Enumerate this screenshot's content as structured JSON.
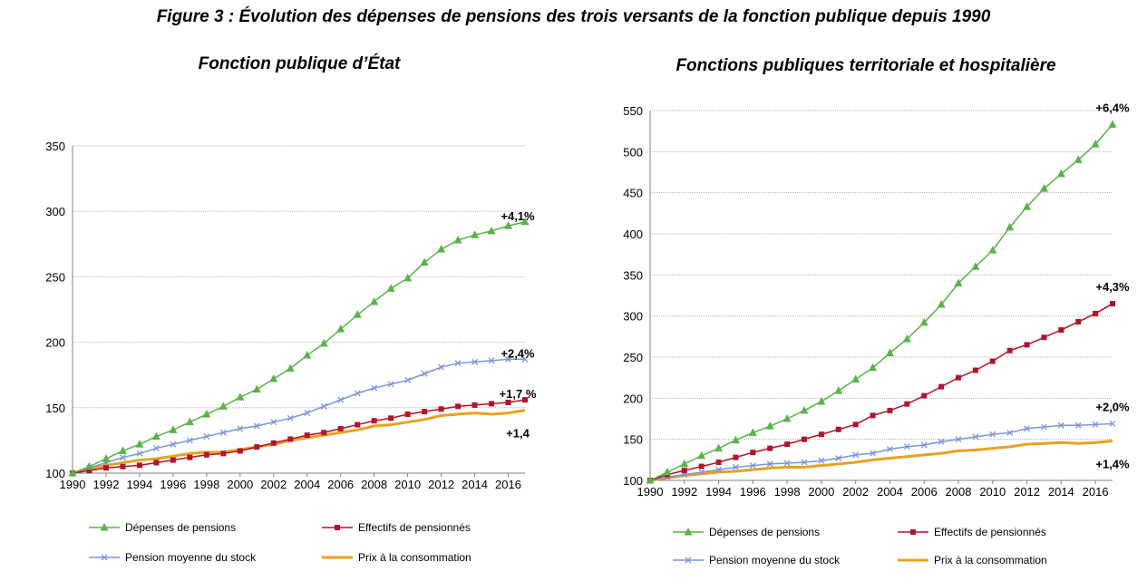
{
  "figure_title": "Figure 3 : Évolution des dépenses de pensions des trois versants de la fonction publique depuis 1990",
  "chart_data": [
    {
      "type": "line",
      "title": "Fonction publique d’État",
      "x": [
        1990,
        1991,
        1992,
        1993,
        1994,
        1995,
        1996,
        1997,
        1998,
        1999,
        2000,
        2001,
        2002,
        2003,
        2004,
        2005,
        2006,
        2007,
        2008,
        2009,
        2010,
        2011,
        2012,
        2013,
        2014,
        2015,
        2016,
        2017
      ],
      "x_tick_labels": [
        "1990",
        "1992",
        "1994",
        "1996",
        "1998",
        "2000",
        "2002",
        "2004",
        "2006",
        "2008",
        "2010",
        "2012",
        "2014",
        "2016"
      ],
      "ylim": [
        100,
        350
      ],
      "y_ticks": [
        100,
        150,
        200,
        250,
        300,
        350
      ],
      "grid": true,
      "legend_position": "bottom",
      "series": [
        {
          "name": "Dépenses de pensions",
          "color": "#59b348",
          "marker": "triangle",
          "values": [
            100,
            105,
            111,
            117,
            122,
            128,
            133,
            139,
            145,
            151,
            158,
            164,
            172,
            180,
            190,
            199,
            210,
            221,
            231,
            241,
            249,
            261,
            271,
            278,
            282,
            285,
            289,
            292
          ]
        },
        {
          "name": "Effectifs de pensionnés",
          "color": "#b5122a",
          "marker": "square",
          "values": [
            100,
            102,
            104,
            105,
            106,
            108,
            110,
            112,
            114,
            115,
            117,
            120,
            123,
            126,
            129,
            131,
            134,
            137,
            140,
            142,
            145,
            147,
            149,
            151,
            152,
            153,
            154,
            156
          ]
        },
        {
          "name": "Pension moyenne du stock",
          "color": "#7a96d8",
          "marker": "x",
          "values": [
            100,
            104,
            108,
            112,
            115,
            119,
            122,
            125,
            128,
            131,
            134,
            136,
            139,
            142,
            146,
            151,
            156,
            161,
            165,
            168,
            171,
            176,
            181,
            184,
            185,
            186,
            187,
            187
          ]
        },
        {
          "name": "Prix à la consommation",
          "color": "#e9a21f",
          "marker": "none",
          "values": [
            100,
            103,
            106,
            108,
            110,
            111,
            113,
            115,
            116,
            116,
            118,
            120,
            122,
            125,
            127,
            129,
            131,
            133,
            136,
            137,
            139,
            141,
            144,
            145,
            146,
            145,
            146,
            148
          ]
        }
      ],
      "annotations": [
        {
          "text": "+4,1%",
          "x": 2017,
          "y": 292
        },
        {
          "text": "+2,4%",
          "x": 2017,
          "y": 187
        },
        {
          "text": "+1,7 %",
          "x": 2017,
          "y": 156
        },
        {
          "text": "+1,4",
          "x": 2017,
          "y": 148
        }
      ]
    },
    {
      "type": "line",
      "title": "Fonctions publiques territoriale et hospitalière",
      "x": [
        1990,
        1991,
        1992,
        1993,
        1994,
        1995,
        1996,
        1997,
        1998,
        1999,
        2000,
        2001,
        2002,
        2003,
        2004,
        2005,
        2006,
        2007,
        2008,
        2009,
        2010,
        2011,
        2012,
        2013,
        2014,
        2015,
        2016,
        2017
      ],
      "x_tick_labels": [
        "1990",
        "1992",
        "1994",
        "1996",
        "1998",
        "2000",
        "2002",
        "2004",
        "2006",
        "2008",
        "2010",
        "2012",
        "2014",
        "2016"
      ],
      "ylim": [
        100,
        550
      ],
      "y_ticks": [
        100,
        150,
        200,
        250,
        300,
        350,
        400,
        450,
        500,
        550
      ],
      "grid": true,
      "legend_position": "bottom",
      "series": [
        {
          "name": "Dépenses de pensions",
          "color": "#59b348",
          "marker": "triangle",
          "values": [
            100,
            110,
            120,
            130,
            139,
            149,
            158,
            166,
            175,
            185,
            196,
            209,
            223,
            237,
            255,
            272,
            292,
            314,
            340,
            360,
            380,
            408,
            433,
            455,
            473,
            490,
            509,
            533
          ]
        },
        {
          "name": "Effectifs de pensionnés",
          "color": "#b5122a",
          "marker": "square",
          "values": [
            100,
            107,
            112,
            117,
            122,
            128,
            134,
            139,
            144,
            150,
            156,
            162,
            168,
            179,
            185,
            193,
            203,
            214,
            225,
            234,
            245,
            258,
            265,
            274,
            283,
            293,
            303,
            315
          ]
        },
        {
          "name": "Pension moyenne du stock",
          "color": "#7a96d8",
          "marker": "x",
          "values": [
            100,
            104,
            107,
            110,
            113,
            116,
            118,
            120,
            121,
            122,
            124,
            127,
            131,
            133,
            138,
            141,
            143,
            147,
            150,
            153,
            156,
            158,
            163,
            165,
            167,
            167,
            168,
            169
          ]
        },
        {
          "name": "Prix à la consommation",
          "color": "#e9a21f",
          "marker": "none",
          "values": [
            100,
            103,
            106,
            108,
            110,
            111,
            113,
            115,
            116,
            116,
            118,
            120,
            122,
            125,
            127,
            129,
            131,
            133,
            136,
            137,
            139,
            141,
            144,
            145,
            146,
            145,
            146,
            148
          ]
        }
      ],
      "annotations": [
        {
          "text": "+6,4%",
          "x": 2017,
          "y": 533
        },
        {
          "text": "+4,3%",
          "x": 2017,
          "y": 315
        },
        {
          "text": "+2,0%",
          "x": 2017,
          "y": 169
        },
        {
          "text": "+1,4%",
          "x": 2017,
          "y": 148
        }
      ]
    }
  ]
}
